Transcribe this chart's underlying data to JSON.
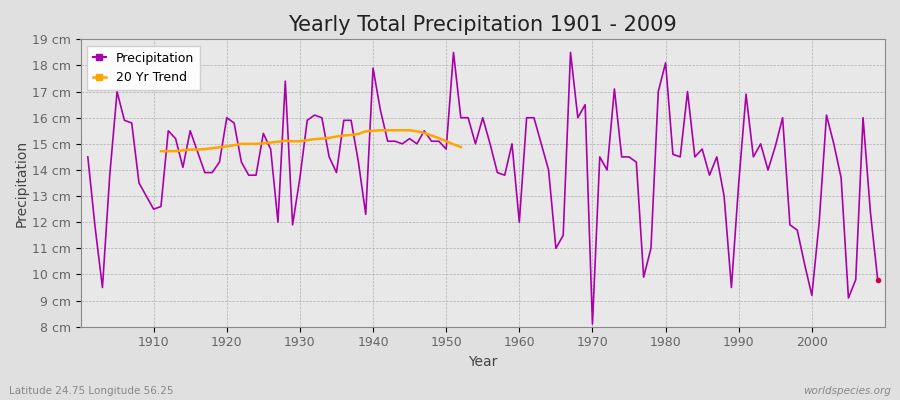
{
  "title": "Yearly Total Precipitation 1901 - 2009",
  "xlabel": "Year",
  "ylabel": "Precipitation",
  "subtitle": "Latitude 24.75 Longitude 56.25",
  "watermark": "worldspecies.org",
  "years": [
    1901,
    1902,
    1903,
    1904,
    1905,
    1906,
    1907,
    1908,
    1909,
    1910,
    1911,
    1912,
    1913,
    1914,
    1915,
    1916,
    1917,
    1918,
    1919,
    1920,
    1921,
    1922,
    1923,
    1924,
    1925,
    1926,
    1927,
    1928,
    1929,
    1930,
    1931,
    1932,
    1933,
    1934,
    1935,
    1936,
    1937,
    1938,
    1939,
    1940,
    1941,
    1942,
    1943,
    1944,
    1945,
    1946,
    1947,
    1948,
    1949,
    1950,
    1951,
    1952,
    1953,
    1954,
    1955,
    1956,
    1957,
    1958,
    1959,
    1960,
    1961,
    1962,
    1963,
    1964,
    1965,
    1966,
    1967,
    1968,
    1969,
    1970,
    1971,
    1972,
    1973,
    1974,
    1975,
    1976,
    1977,
    1978,
    1979,
    1980,
    1981,
    1982,
    1983,
    1984,
    1985,
    1986,
    1987,
    1988,
    1989,
    1990,
    1991,
    1992,
    1993,
    1994,
    1995,
    1996,
    1997,
    1998,
    1999,
    2000,
    2001,
    2002,
    2003,
    2004,
    2005,
    2006,
    2007,
    2008,
    2009
  ],
  "precip": [
    14.5,
    11.8,
    9.5,
    13.8,
    17.0,
    15.9,
    15.8,
    13.5,
    13.0,
    12.5,
    12.6,
    15.5,
    15.2,
    14.1,
    15.5,
    14.7,
    13.9,
    13.9,
    14.3,
    16.0,
    15.8,
    14.3,
    13.8,
    13.8,
    15.4,
    14.8,
    12.0,
    17.4,
    11.9,
    13.7,
    15.9,
    16.1,
    16.0,
    14.5,
    13.9,
    15.9,
    15.9,
    14.3,
    12.3,
    17.9,
    16.3,
    15.1,
    15.1,
    15.0,
    15.2,
    15.0,
    15.5,
    15.1,
    15.1,
    14.8,
    18.5,
    16.0,
    16.0,
    15.0,
    16.0,
    15.0,
    13.9,
    13.8,
    15.0,
    12.0,
    16.0,
    16.0,
    15.0,
    14.0,
    11.0,
    11.5,
    18.5,
    16.0,
    16.5,
    8.1,
    14.5,
    14.0,
    17.1,
    14.5,
    14.5,
    14.3,
    9.9,
    11.0,
    17.0,
    18.1,
    14.6,
    14.5,
    17.0,
    14.5,
    14.8,
    13.8,
    14.5,
    13.0,
    9.5,
    13.5,
    16.9,
    14.5,
    15.0,
    14.0,
    14.9,
    16.0,
    11.9,
    11.7,
    10.4,
    9.2,
    12.0,
    16.1,
    15.0,
    13.7,
    9.1,
    9.8,
    16.0,
    12.4,
    9.8
  ],
  "trend_years": [
    1911,
    1912,
    1913,
    1914,
    1915,
    1916,
    1917,
    1918,
    1919,
    1920,
    1921,
    1922,
    1923,
    1924,
    1925,
    1926,
    1927,
    1928,
    1929,
    1930,
    1931,
    1932,
    1933,
    1934,
    1935,
    1936,
    1937,
    1938,
    1939,
    1940,
    1941,
    1942,
    1943,
    1944,
    1945,
    1946,
    1947,
    1948,
    1949,
    1950,
    1951,
    1952
  ],
  "trend_values": [
    14.72,
    14.72,
    14.72,
    14.75,
    14.78,
    14.78,
    14.8,
    14.83,
    14.87,
    14.9,
    14.95,
    15.0,
    15.0,
    15.0,
    15.02,
    15.05,
    15.08,
    15.12,
    15.1,
    15.1,
    15.14,
    15.18,
    15.2,
    15.23,
    15.28,
    15.32,
    15.34,
    15.38,
    15.48,
    15.5,
    15.52,
    15.52,
    15.52,
    15.52,
    15.52,
    15.48,
    15.42,
    15.32,
    15.22,
    15.1,
    14.98,
    14.88
  ],
  "precip_color": "#aa00aa",
  "trend_color": "#FFA500",
  "bg_color": "#e0e0e0",
  "plot_bg_color": "#e8e8e8",
  "ylim": [
    8,
    19
  ],
  "xlim": [
    1901,
    2010
  ],
  "yticks": [
    8,
    9,
    10,
    11,
    12,
    13,
    14,
    15,
    16,
    17,
    18,
    19
  ],
  "ytick_labels": [
    "8 cm",
    "9 cm",
    "10 cm",
    "11 cm",
    "12 cm",
    "13 cm",
    "14 cm",
    "15 cm",
    "16 cm",
    "17 cm",
    "18 cm",
    "19 cm"
  ],
  "xticks": [
    1910,
    1920,
    1930,
    1940,
    1950,
    1960,
    1970,
    1980,
    1990,
    2000
  ],
  "title_fontsize": 15,
  "axis_fontsize": 9,
  "legend_fontsize": 9,
  "dot_x": 2009,
  "dot_y": 9.8,
  "dot_color": "#cc0044"
}
